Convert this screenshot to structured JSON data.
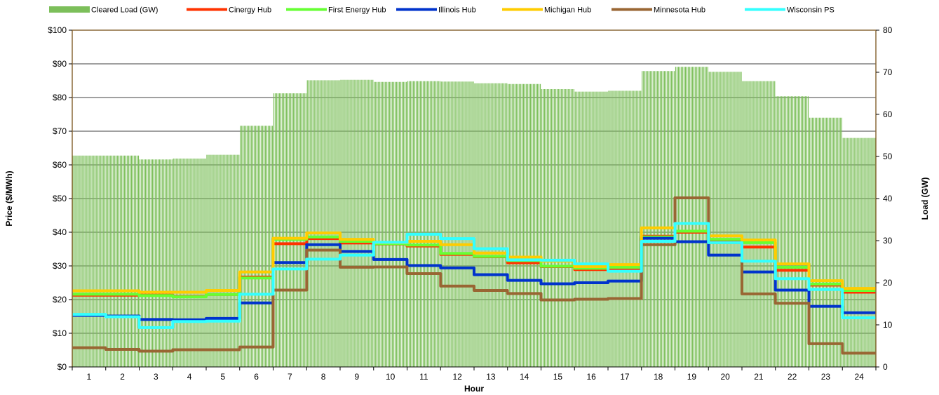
{
  "chart_data": {
    "type": "bar+line",
    "xlabel": "Hour",
    "y_left_label": "Price ($/MWh)",
    "y_right_label": "Load (GW)",
    "y_left_ticks": [
      "$0",
      "$10",
      "$20",
      "$30",
      "$40",
      "$50",
      "$60",
      "$70",
      "$80",
      "$90",
      "$100"
    ],
    "y_left_range": [
      0,
      100
    ],
    "y_right_ticks": [
      "0",
      "10",
      "20",
      "30",
      "40",
      "50",
      "60",
      "70",
      "80"
    ],
    "y_right_range": [
      0,
      80
    ],
    "categories": [
      "1",
      "2",
      "3",
      "4",
      "5",
      "6",
      "7",
      "8",
      "9",
      "10",
      "11",
      "12",
      "13",
      "14",
      "15",
      "16",
      "17",
      "18",
      "19",
      "20",
      "21",
      "22",
      "23",
      "24"
    ],
    "grid": "horizontal",
    "legend_position": "top",
    "bar_series": {
      "name": "Cleared Load (GW)",
      "axis": "right",
      "color": "#7cbf5a",
      "values": [
        50.2,
        50.2,
        49.3,
        49.5,
        50.4,
        57.3,
        65.0,
        68.1,
        68.2,
        67.7,
        67.9,
        67.8,
        67.4,
        67.2,
        66.0,
        65.4,
        65.6,
        70.3,
        71.3,
        70.1,
        67.9,
        64.3,
        59.2,
        54.4
      ]
    },
    "series": [
      {
        "name": "Cinergy Hub",
        "color": "#ff3300",
        "values": [
          21.3,
          21.3,
          21.3,
          20.9,
          21.5,
          26.7,
          36.6,
          38.1,
          36.8,
          36.5,
          35.9,
          33.4,
          32.7,
          30.9,
          29.8,
          28.9,
          28.8,
          38.8,
          40.0,
          37.2,
          35.6,
          28.7,
          24.3,
          22.2
        ]
      },
      {
        "name": "First Energy Hub",
        "color": "#66ff33",
        "values": [
          21.6,
          21.6,
          21.2,
          20.8,
          21.5,
          26.4,
          37.9,
          38.6,
          37.3,
          36.6,
          36.2,
          33.7,
          32.8,
          31.6,
          29.9,
          29.3,
          29.6,
          38.6,
          40.3,
          37.9,
          36.9,
          29.6,
          24.6,
          22.7
        ]
      },
      {
        "name": "Illinois Hub",
        "color": "#0033cc",
        "values": [
          15.3,
          15.1,
          14.1,
          14.0,
          14.4,
          19.0,
          31.0,
          36.3,
          34.3,
          31.9,
          30.1,
          29.4,
          27.4,
          25.7,
          24.7,
          25.0,
          25.5,
          38.2,
          37.2,
          33.2,
          28.2,
          22.8,
          18.0,
          16.1
        ]
      },
      {
        "name": "Michigan Hub",
        "color": "#ffcc00",
        "values": [
          22.6,
          22.6,
          22.2,
          22.2,
          22.7,
          28.2,
          38.2,
          39.8,
          37.9,
          36.9,
          37.3,
          36.3,
          33.8,
          32.6,
          31.4,
          29.8,
          30.4,
          41.3,
          42.6,
          38.9,
          37.7,
          30.6,
          25.6,
          23.3
        ]
      },
      {
        "name": "Minnesota Hub",
        "color": "#996633",
        "values": [
          5.7,
          5.2,
          4.7,
          5.1,
          5.1,
          5.9,
          22.8,
          34.7,
          29.6,
          29.7,
          27.7,
          24.0,
          22.7,
          21.8,
          19.9,
          20.1,
          20.3,
          36.3,
          50.2,
          36.9,
          21.7,
          18.9,
          6.9,
          4.1
        ]
      },
      {
        "name": "Wisconsin PS",
        "color": "#33ffff",
        "values": [
          15.6,
          14.9,
          11.7,
          13.5,
          13.6,
          21.6,
          29.1,
          32.0,
          33.2,
          37.0,
          39.4,
          38.1,
          35.1,
          31.8,
          31.7,
          30.6,
          28.4,
          37.3,
          42.6,
          36.9,
          31.4,
          26.2,
          23.0,
          14.6
        ]
      }
    ]
  }
}
